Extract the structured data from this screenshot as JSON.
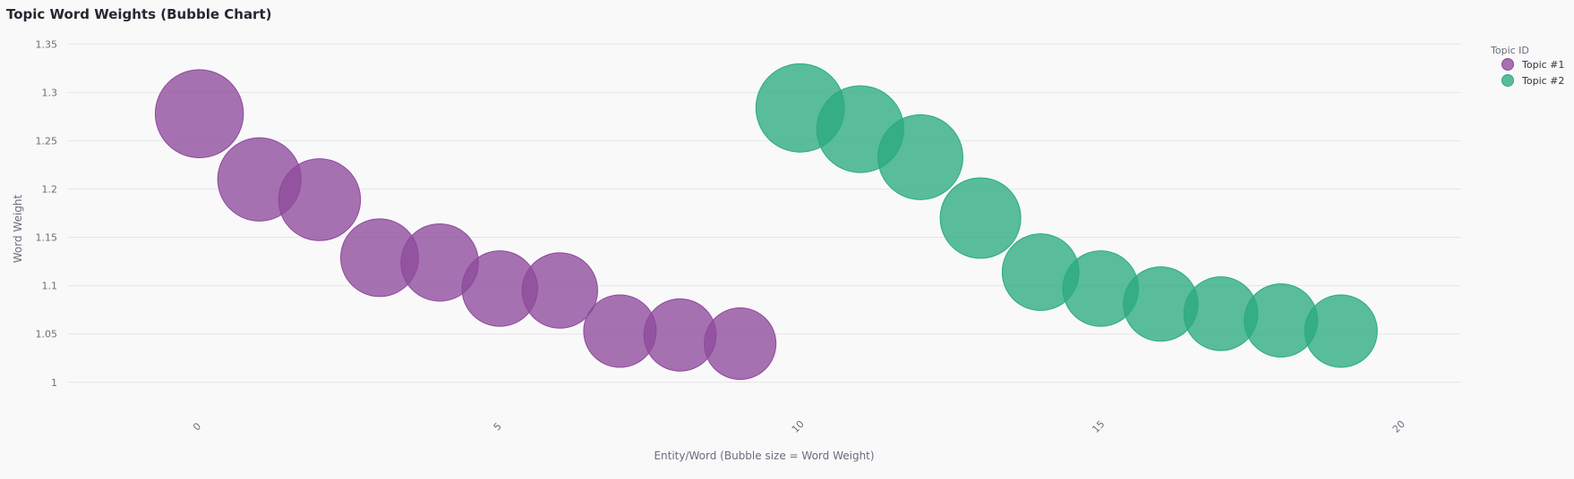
{
  "chart_data": {
    "type": "scatter",
    "title": "Topic Word Weights (Bubble Chart)",
    "xlabel": "Entity/Word (Bubble size = Word Weight)",
    "ylabel": "Word Weight",
    "xlim": [
      -2.2,
      21
    ],
    "ylim": [
      0.985,
      1.355
    ],
    "x_ticks": [
      0,
      5,
      10,
      15,
      20
    ],
    "y_ticks": [
      1,
      1.05,
      1.1,
      1.15,
      1.2,
      1.25,
      1.3,
      1.35
    ],
    "grid": true,
    "legend_title": "Topic ID",
    "legend_position": "top-right",
    "series": [
      {
        "name": "Topic #1",
        "color": "#8e4a9b",
        "x": [
          0,
          1,
          2,
          3,
          4,
          5,
          6,
          7,
          8,
          9
        ],
        "y": [
          1.278,
          1.21,
          1.189,
          1.129,
          1.124,
          1.097,
          1.095,
          1.053,
          1.049,
          1.04
        ]
      },
      {
        "name": "Topic #2",
        "color": "#2bab80",
        "x": [
          10,
          11,
          12,
          13,
          14,
          15,
          16,
          17,
          18,
          19
        ],
        "y": [
          1.284,
          1.262,
          1.233,
          1.17,
          1.114,
          1.097,
          1.081,
          1.071,
          1.064,
          1.053
        ]
      }
    ]
  }
}
